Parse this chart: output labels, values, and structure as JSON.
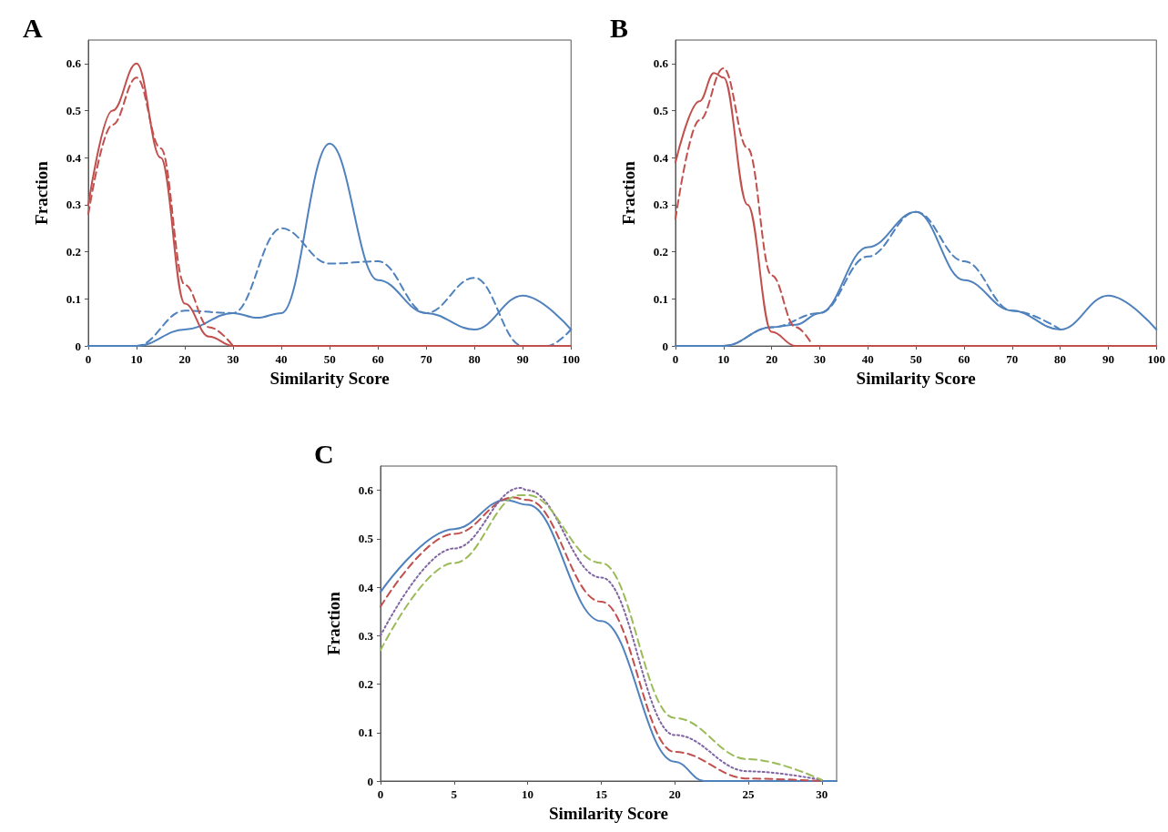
{
  "chart_data": [
    {
      "type": "line",
      "title": "A",
      "xlabel": "Similarity Score",
      "ylabel": "Fraction",
      "xlim": [
        0,
        100
      ],
      "xticks": [
        0,
        10,
        20,
        30,
        40,
        50,
        60,
        70,
        80,
        90,
        100
      ],
      "ylim": [
        0,
        0.65
      ],
      "yticks": [
        0,
        0.1,
        0.2,
        0.3,
        0.4,
        0.5,
        0.6
      ],
      "grid": false,
      "marker": "none",
      "series": [
        {
          "color": "#4f81bd",
          "line_style": "solid",
          "x": [
            0,
            10,
            20,
            30,
            35,
            40,
            50,
            60,
            70,
            80,
            90,
            100
          ],
          "values": [
            0,
            0,
            0.035,
            0.07,
            0.06,
            0.07,
            0.43,
            0.14,
            0.07,
            0.035,
            0.107,
            0.035
          ]
        },
        {
          "color": "#4f81bd",
          "line_style": "dashed",
          "x": [
            0,
            10,
            20,
            30,
            40,
            50,
            60,
            70,
            80,
            90,
            95,
            100
          ],
          "values": [
            0,
            0,
            0.075,
            0.07,
            0.25,
            0.175,
            0.18,
            0.07,
            0.145,
            0,
            0,
            0.035
          ]
        },
        {
          "color": "#c0504d",
          "line_style": "solid",
          "x": [
            0,
            5,
            10,
            15,
            20,
            25,
            30,
            40,
            50,
            60,
            70,
            80,
            90,
            100
          ],
          "values": [
            0.3,
            0.5,
            0.6,
            0.4,
            0.09,
            0.02,
            0,
            0,
            0,
            0,
            0,
            0,
            0,
            0
          ]
        },
        {
          "color": "#c0504d",
          "line_style": "dashed",
          "x": [
            0,
            5,
            10,
            15,
            20,
            25,
            30
          ],
          "values": [
            0.28,
            0.47,
            0.57,
            0.42,
            0.13,
            0.04,
            0
          ]
        }
      ]
    },
    {
      "type": "line",
      "title": "B",
      "xlabel": "Similarity Score",
      "ylabel": "Fraction",
      "xlim": [
        0,
        100
      ],
      "xticks": [
        0,
        10,
        20,
        30,
        40,
        50,
        60,
        70,
        80,
        90,
        100
      ],
      "ylim": [
        0,
        0.65
      ],
      "yticks": [
        0,
        0.1,
        0.2,
        0.3,
        0.4,
        0.5,
        0.6
      ],
      "grid": false,
      "marker": "none",
      "series": [
        {
          "color": "#4f81bd",
          "line_style": "solid",
          "x": [
            0,
            10,
            20,
            25,
            30,
            40,
            50,
            60,
            70,
            80,
            90,
            100
          ],
          "values": [
            0,
            0,
            0.04,
            0.045,
            0.07,
            0.21,
            0.285,
            0.14,
            0.075,
            0.035,
            0.107,
            0.035
          ]
        },
        {
          "color": "#4f81bd",
          "line_style": "dashed",
          "x": [
            0,
            10,
            20,
            30,
            40,
            50,
            60,
            70,
            80
          ],
          "values": [
            0,
            0,
            0.04,
            0.07,
            0.19,
            0.285,
            0.18,
            0.075,
            0.035
          ]
        },
        {
          "color": "#c0504d",
          "line_style": "solid",
          "x": [
            0,
            5,
            8,
            10,
            15,
            20,
            25,
            30,
            40,
            50,
            60,
            70,
            80,
            90,
            100
          ],
          "values": [
            0.39,
            0.52,
            0.58,
            0.57,
            0.3,
            0.03,
            0,
            0,
            0,
            0,
            0,
            0,
            0,
            0,
            0
          ]
        },
        {
          "color": "#c0504d",
          "line_style": "dashed",
          "x": [
            0,
            5,
            10,
            15,
            20,
            25,
            28
          ],
          "values": [
            0.27,
            0.48,
            0.59,
            0.42,
            0.15,
            0.04,
            0.01
          ]
        }
      ]
    },
    {
      "type": "line",
      "title": "C",
      "xlabel": "Similarity Score",
      "ylabel": "Fraction",
      "xlim": [
        0,
        31
      ],
      "xticks": [
        0,
        5,
        10,
        15,
        20,
        25,
        30
      ],
      "ylim": [
        0,
        0.65
      ],
      "yticks": [
        0,
        0.1,
        0.2,
        0.3,
        0.4,
        0.5,
        0.6
      ],
      "grid": false,
      "marker": "none",
      "series": [
        {
          "color": "#4f81bd",
          "line_style": "solid",
          "x": [
            0,
            5,
            8.5,
            10,
            15,
            20,
            22,
            25,
            30,
            31
          ],
          "values": [
            0.39,
            0.52,
            0.58,
            0.57,
            0.33,
            0.04,
            0,
            0,
            0,
            0
          ]
        },
        {
          "color": "#c0504d",
          "line_style": "dashed",
          "x": [
            0,
            5,
            9,
            10,
            15,
            20,
            25,
            30
          ],
          "values": [
            0.36,
            0.51,
            0.585,
            0.58,
            0.37,
            0.06,
            0.005,
            0
          ]
        },
        {
          "color": "#8064a2",
          "line_style": "dotted",
          "x": [
            0,
            5,
            9.5,
            10,
            15,
            20,
            25,
            30
          ],
          "values": [
            0.3,
            0.48,
            0.605,
            0.6,
            0.42,
            0.095,
            0.02,
            0.002
          ]
        },
        {
          "color": "#9bbb59",
          "line_style": "dashed",
          "x": [
            0,
            5,
            9.5,
            10,
            15,
            20,
            25,
            30
          ],
          "values": [
            0.27,
            0.45,
            0.59,
            0.59,
            0.45,
            0.13,
            0.045,
            0.002
          ]
        }
      ]
    }
  ]
}
